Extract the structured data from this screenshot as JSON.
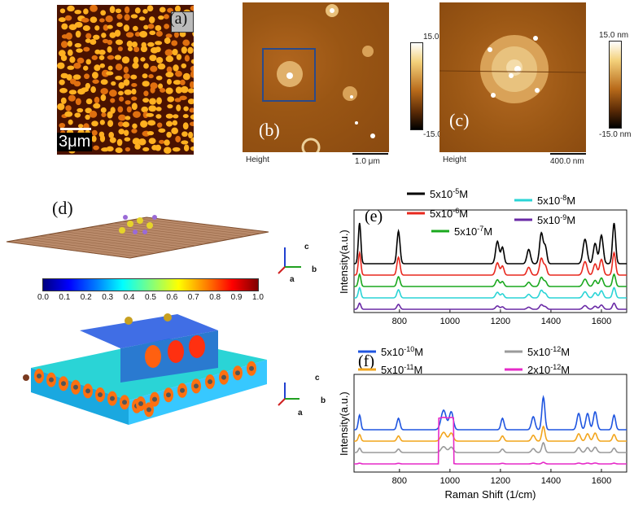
{
  "panels": {
    "a": {
      "label": "(a)",
      "scalebar": "3μm"
    },
    "b": {
      "label": "(b)",
      "height_label": "Height",
      "scalebar": "1.0 μm",
      "cbar_top": "15.0 nm",
      "cbar_bottom": "-15.0 nm"
    },
    "c": {
      "label": "(c)",
      "height_label": "Height",
      "scalebar": "400.0 nm",
      "cbar_top": "15.0 nm",
      "cbar_bottom": "-15.0 nm"
    },
    "d": {
      "label": "(d)",
      "axes": {
        "c": "c",
        "b": "b",
        "a": "a"
      },
      "colorbar_ticks": [
        "0.0",
        "0.1",
        "0.2",
        "0.3",
        "0.4",
        "0.5",
        "0.6",
        "0.7",
        "0.8",
        "0.9",
        "1.0"
      ]
    },
    "e": {
      "label": "(e)",
      "ylabel": "Intensity(a.u.)"
    },
    "f": {
      "label": "(f)",
      "ylabel": "Intensity(a.u.)",
      "xlabel": "Raman Shift (1/cm)"
    }
  },
  "colors": {
    "black": "#000000",
    "red": "#e8281e",
    "green": "#1aa81e",
    "cyan": "#2ad4d6",
    "purple": "#6a2aa6",
    "blue": "#1f55e0",
    "orange": "#f2a51c",
    "gray": "#9a9a9a",
    "magenta": "#e62ac8"
  },
  "chart_data": [
    {
      "type": "line",
      "panel": "e",
      "xlim": [
        620,
        1700
      ],
      "xticks": [
        800,
        1000,
        1200,
        1400,
        1600
      ],
      "peaks": [
        642,
        796,
        1188,
        1208,
        1312,
        1362,
        1378,
        1510,
        1535,
        1575,
        1600,
        1650
      ],
      "series": [
        {
          "name": "5x10",
          "exp": "-5",
          "unit": "M",
          "color": "#000000",
          "scale": 1.0
        },
        {
          "name": "5x10",
          "exp": "-6",
          "unit": "M",
          "color": "#e8281e",
          "scale": 0.55
        },
        {
          "name": "5x10",
          "exp": "-7",
          "unit": "M",
          "color": "#1aa81e",
          "scale": 0.3
        },
        {
          "name": "5x10",
          "exp": "-8",
          "unit": "M",
          "color": "#2ad4d6",
          "scale": 0.25
        },
        {
          "name": "5x10",
          "exp": "-9",
          "unit": "M",
          "color": "#6a2aa6",
          "scale": 0.15
        }
      ]
    },
    {
      "type": "line",
      "panel": "f",
      "xlim": [
        620,
        1700
      ],
      "xticks": [
        800,
        1000,
        1200,
        1400,
        1600
      ],
      "series": [
        {
          "name": "5x10",
          "exp": "-10",
          "unit": "M",
          "color": "#1f55e0",
          "scale": 1.0
        },
        {
          "name": "5x10",
          "exp": "-11",
          "unit": "M",
          "color": "#f2a51c",
          "scale": 0.45
        },
        {
          "name": "5x10",
          "exp": "-12",
          "unit": "M",
          "color": "#9a9a9a",
          "scale": 0.3
        },
        {
          "name": "2x10",
          "exp": "-12",
          "unit": "M",
          "color": "#e62ac8",
          "scale": 0.15
        }
      ]
    }
  ]
}
